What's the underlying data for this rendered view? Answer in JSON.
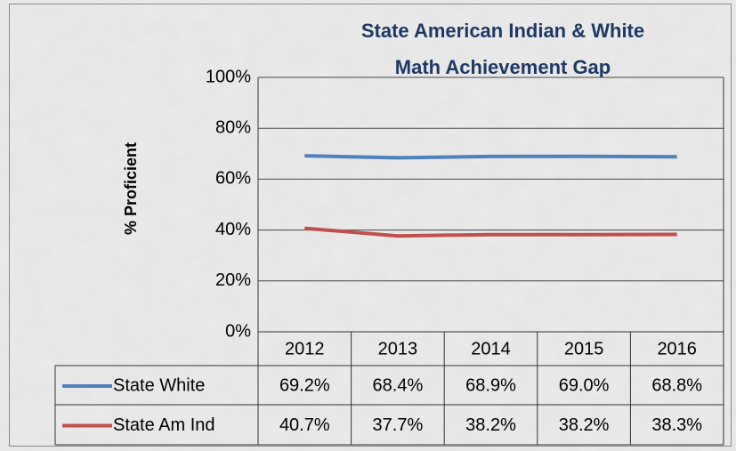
{
  "chart_data": {
    "type": "line",
    "title": [
      "State American Indian & White",
      "Math Achievement Gap"
    ],
    "y_label": "% Proficient",
    "categories": [
      "2012",
      "2013",
      "2014",
      "2015",
      "2016"
    ],
    "series": [
      {
        "name": "State White",
        "color": "#4f81bd",
        "values": [
          69.2,
          68.4,
          68.9,
          69.0,
          68.8
        ],
        "value_labels": [
          "69.2%",
          "68.4%",
          "68.9%",
          "69.0%",
          "68.8%"
        ]
      },
      {
        "name": "State Am Ind",
        "color": "#c0504d",
        "values": [
          40.7,
          37.7,
          38.2,
          38.2,
          38.3
        ],
        "value_labels": [
          "40.7%",
          "37.7%",
          "38.2%",
          "38.2%",
          "38.3%"
        ]
      }
    ],
    "ylim": [
      0,
      100
    ],
    "yticks": [
      {
        "value": 0,
        "label": "0%"
      },
      {
        "value": 20,
        "label": "20%"
      },
      {
        "value": 40,
        "label": "40%"
      },
      {
        "value": 60,
        "label": "60%"
      },
      {
        "value": 80,
        "label": "80%"
      },
      {
        "value": 100,
        "label": "100%"
      }
    ],
    "grid": true
  }
}
